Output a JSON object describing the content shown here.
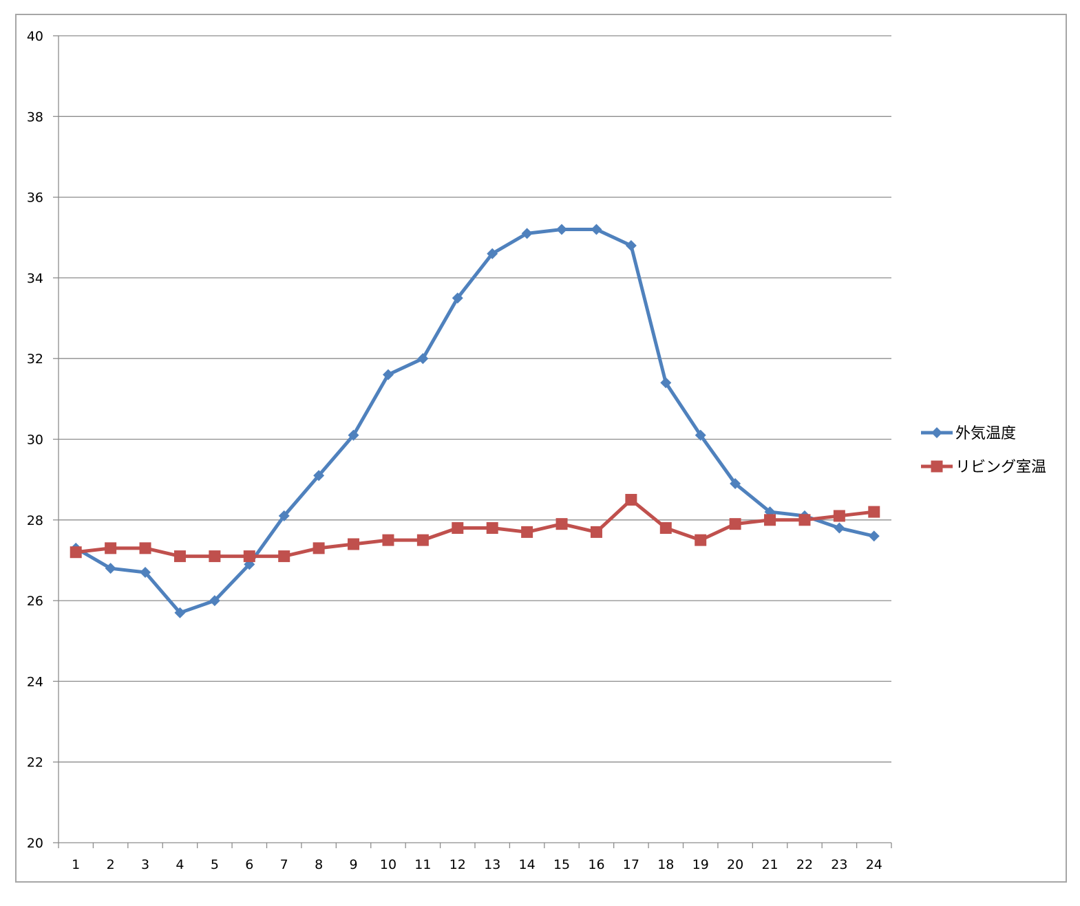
{
  "chart_data": {
    "type": "line",
    "title": "",
    "xlabel": "",
    "ylabel": "",
    "categories": [
      "1",
      "2",
      "3",
      "4",
      "5",
      "6",
      "7",
      "8",
      "9",
      "10",
      "11",
      "12",
      "13",
      "14",
      "15",
      "16",
      "17",
      "18",
      "19",
      "20",
      "21",
      "22",
      "23",
      "24"
    ],
    "ylim": [
      20,
      40
    ],
    "yticks": [
      "20",
      "22",
      "24",
      "26",
      "28",
      "30",
      "32",
      "34",
      "36",
      "38",
      "40"
    ],
    "grid": true,
    "legend_position": "right",
    "series": [
      {
        "name": "外気温度",
        "color": "#4f81bd",
        "marker": "diamond",
        "values": [
          27.3,
          26.8,
          26.7,
          25.7,
          26.0,
          26.9,
          28.1,
          29.1,
          30.1,
          31.6,
          32.0,
          33.5,
          34.6,
          35.1,
          35.2,
          35.2,
          34.8,
          31.4,
          30.1,
          28.9,
          28.2,
          28.1,
          27.8,
          27.6
        ]
      },
      {
        "name": "リビング室温",
        "color": "#c0504d",
        "marker": "square",
        "values": [
          27.2,
          27.3,
          27.3,
          27.1,
          27.1,
          27.1,
          27.1,
          27.3,
          27.4,
          27.5,
          27.5,
          27.8,
          27.8,
          27.7,
          27.9,
          27.7,
          28.5,
          27.8,
          27.5,
          27.9,
          28.0,
          28.0,
          28.1,
          28.2
        ]
      }
    ]
  }
}
